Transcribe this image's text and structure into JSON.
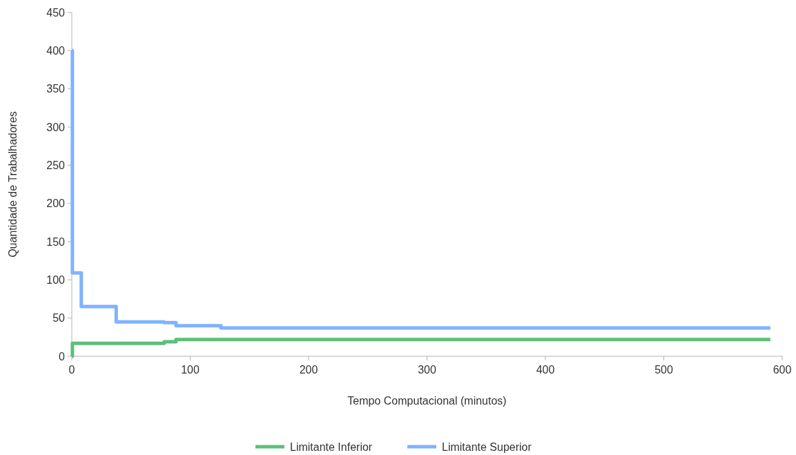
{
  "chart_data": {
    "type": "step",
    "xlabel": "Tempo Computacional (minutos)",
    "ylabel": "Quantidade de Trabalhadores",
    "xlim": [
      0,
      600
    ],
    "xticks": [
      0,
      100,
      200,
      300,
      400,
      500,
      600
    ],
    "ylim": [
      0,
      450
    ],
    "yticks": [
      0,
      50,
      100,
      150,
      200,
      250,
      300,
      350,
      400,
      450
    ],
    "legend": "bottom",
    "series": [
      {
        "name": "Limitante Inferior",
        "color": "#5cbf7a",
        "x": [
          0,
          0.5,
          78,
          88,
          590
        ],
        "values": [
          0,
          17,
          19,
          22,
          22
        ]
      },
      {
        "name": "Limitante Superior",
        "color": "#7eb3ff",
        "x": [
          0,
          0.5,
          8,
          37.5,
          78,
          88,
          126,
          590
        ],
        "values": [
          400,
          109,
          65,
          45,
          44,
          40,
          37,
          37
        ]
      }
    ]
  }
}
